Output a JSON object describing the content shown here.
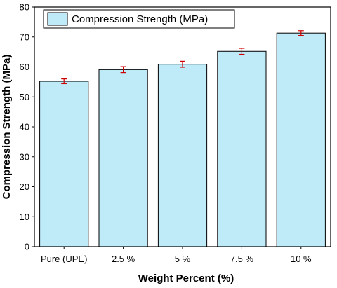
{
  "chart_data": {
    "type": "bar",
    "categories": [
      "Pure (UPE)",
      "2.5 %",
      "5 %",
      "7.5 %",
      "10 %"
    ],
    "series": [
      {
        "name": "Compression Strength (MPa)",
        "values": [
          55.2,
          59.1,
          60.9,
          65.2,
          71.3
        ],
        "errors": [
          0.8,
          1.0,
          1.0,
          1.0,
          0.8
        ]
      }
    ],
    "xlabel": "Weight Percent (%)",
    "ylabel": "Compression Strength (MPa)",
    "ylim": [
      0,
      80
    ],
    "yticks": [
      0,
      10,
      20,
      30,
      40,
      50,
      60,
      70,
      80
    ],
    "grid": false,
    "legend_position": "top-left",
    "colors": {
      "bar_fill": "#bfeaf8",
      "bar_stroke": "#000000",
      "error_bar": "#cc0000"
    }
  }
}
